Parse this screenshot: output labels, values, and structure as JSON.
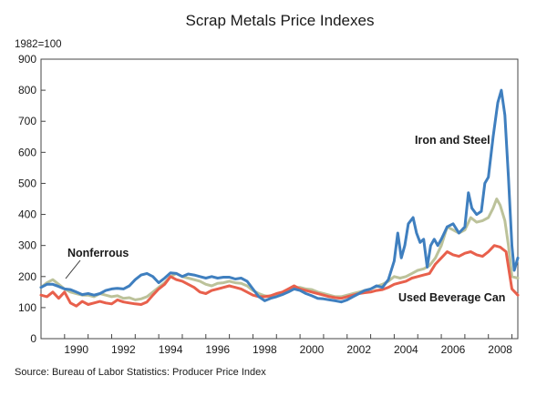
{
  "chart_data": {
    "type": "line",
    "title": "Scrap Metals Price Indexes",
    "unit_label": "1982=100",
    "source": "Source: Bureau of Labor Statistics: Producer Price Index",
    "xlim": [
      1989.0,
      2009.25
    ],
    "ylim": [
      0,
      900
    ],
    "y_ticks": [
      0,
      100,
      200,
      300,
      400,
      500,
      600,
      700,
      800,
      900
    ],
    "x_ticks": [
      1990,
      1992,
      1994,
      1996,
      1998,
      2000,
      2002,
      2004,
      2006,
      2008
    ],
    "grid": false,
    "legend": "inline labels",
    "colors": {
      "iron_steel": "#3f7fbf",
      "nonferrous": "#bcc29a",
      "used_can": "#e8604c"
    },
    "series": [
      {
        "name": "Iron and Steel",
        "key": "iron_steel",
        "points": [
          [
            1989.0,
            165
          ],
          [
            1989.25,
            175
          ],
          [
            1989.5,
            175
          ],
          [
            1989.75,
            168
          ],
          [
            1990.0,
            160
          ],
          [
            1990.25,
            158
          ],
          [
            1990.5,
            150
          ],
          [
            1990.75,
            142
          ],
          [
            1991.0,
            145
          ],
          [
            1991.25,
            140
          ],
          [
            1991.5,
            145
          ],
          [
            1991.75,
            155
          ],
          [
            1992.0,
            160
          ],
          [
            1992.25,
            162
          ],
          [
            1992.5,
            160
          ],
          [
            1992.75,
            170
          ],
          [
            1993.0,
            190
          ],
          [
            1993.25,
            205
          ],
          [
            1993.5,
            210
          ],
          [
            1993.75,
            200
          ],
          [
            1994.0,
            180
          ],
          [
            1994.25,
            195
          ],
          [
            1994.5,
            212
          ],
          [
            1994.75,
            210
          ],
          [
            1995.0,
            200
          ],
          [
            1995.25,
            208
          ],
          [
            1995.5,
            205
          ],
          [
            1995.75,
            200
          ],
          [
            1996.0,
            195
          ],
          [
            1996.25,
            200
          ],
          [
            1996.5,
            195
          ],
          [
            1996.75,
            198
          ],
          [
            1997.0,
            198
          ],
          [
            1997.25,
            192
          ],
          [
            1997.5,
            195
          ],
          [
            1997.75,
            185
          ],
          [
            1998.0,
            160
          ],
          [
            1998.25,
            135
          ],
          [
            1998.5,
            122
          ],
          [
            1998.75,
            130
          ],
          [
            1999.0,
            135
          ],
          [
            1999.25,
            142
          ],
          [
            1999.5,
            150
          ],
          [
            1999.75,
            160
          ],
          [
            2000.0,
            155
          ],
          [
            2000.25,
            145
          ],
          [
            2000.5,
            138
          ],
          [
            2000.75,
            130
          ],
          [
            2001.0,
            128
          ],
          [
            2001.25,
            125
          ],
          [
            2001.5,
            122
          ],
          [
            2001.75,
            118
          ],
          [
            2002.0,
            125
          ],
          [
            2002.25,
            135
          ],
          [
            2002.5,
            145
          ],
          [
            2002.75,
            155
          ],
          [
            2003.0,
            160
          ],
          [
            2003.25,
            170
          ],
          [
            2003.5,
            165
          ],
          [
            2003.75,
            190
          ],
          [
            2004.0,
            250
          ],
          [
            2004.15,
            340
          ],
          [
            2004.3,
            260
          ],
          [
            2004.45,
            300
          ],
          [
            2004.6,
            370
          ],
          [
            2004.8,
            390
          ],
          [
            2004.95,
            340
          ],
          [
            2005.1,
            310
          ],
          [
            2005.25,
            320
          ],
          [
            2005.4,
            230
          ],
          [
            2005.55,
            300
          ],
          [
            2005.7,
            320
          ],
          [
            2005.85,
            300
          ],
          [
            2006.0,
            320
          ],
          [
            2006.25,
            360
          ],
          [
            2006.5,
            370
          ],
          [
            2006.75,
            340
          ],
          [
            2007.0,
            360
          ],
          [
            2007.15,
            470
          ],
          [
            2007.3,
            420
          ],
          [
            2007.5,
            400
          ],
          [
            2007.7,
            410
          ],
          [
            2007.85,
            500
          ],
          [
            2008.0,
            520
          ],
          [
            2008.2,
            650
          ],
          [
            2008.4,
            760
          ],
          [
            2008.55,
            800
          ],
          [
            2008.7,
            720
          ],
          [
            2008.85,
            520
          ],
          [
            2009.0,
            300
          ],
          [
            2009.1,
            220
          ],
          [
            2009.25,
            260
          ]
        ]
      },
      {
        "name": "Nonferrous",
        "key": "nonferrous",
        "points": [
          [
            1989.0,
            165
          ],
          [
            1989.25,
            180
          ],
          [
            1989.5,
            190
          ],
          [
            1989.75,
            175
          ],
          [
            1990.0,
            160
          ],
          [
            1990.25,
            150
          ],
          [
            1990.5,
            145
          ],
          [
            1990.75,
            140
          ],
          [
            1991.0,
            140
          ],
          [
            1991.25,
            135
          ],
          [
            1991.5,
            145
          ],
          [
            1991.75,
            140
          ],
          [
            1992.0,
            135
          ],
          [
            1992.25,
            138
          ],
          [
            1992.5,
            130
          ],
          [
            1992.75,
            132
          ],
          [
            1993.0,
            125
          ],
          [
            1993.25,
            128
          ],
          [
            1993.5,
            135
          ],
          [
            1993.75,
            150
          ],
          [
            1994.0,
            165
          ],
          [
            1994.25,
            180
          ],
          [
            1994.5,
            200
          ],
          [
            1994.75,
            210
          ],
          [
            1995.0,
            200
          ],
          [
            1995.25,
            195
          ],
          [
            1995.5,
            190
          ],
          [
            1995.75,
            185
          ],
          [
            1996.0,
            175
          ],
          [
            1996.25,
            170
          ],
          [
            1996.5,
            178
          ],
          [
            1996.75,
            180
          ],
          [
            1997.0,
            185
          ],
          [
            1997.25,
            180
          ],
          [
            1997.5,
            178
          ],
          [
            1997.75,
            170
          ],
          [
            1998.0,
            155
          ],
          [
            1998.25,
            145
          ],
          [
            1998.5,
            138
          ],
          [
            1998.75,
            135
          ],
          [
            1999.0,
            140
          ],
          [
            1999.25,
            145
          ],
          [
            1999.5,
            155
          ],
          [
            1999.75,
            165
          ],
          [
            2000.0,
            165
          ],
          [
            2000.25,
            160
          ],
          [
            2000.5,
            158
          ],
          [
            2000.75,
            150
          ],
          [
            2001.0,
            145
          ],
          [
            2001.25,
            140
          ],
          [
            2001.5,
            135
          ],
          [
            2001.75,
            135
          ],
          [
            2002.0,
            140
          ],
          [
            2002.25,
            145
          ],
          [
            2002.5,
            150
          ],
          [
            2002.75,
            155
          ],
          [
            2003.0,
            160
          ],
          [
            2003.25,
            168
          ],
          [
            2003.5,
            175
          ],
          [
            2003.75,
            185
          ],
          [
            2004.0,
            200
          ],
          [
            2004.25,
            195
          ],
          [
            2004.5,
            200
          ],
          [
            2004.75,
            210
          ],
          [
            2005.0,
            220
          ],
          [
            2005.25,
            225
          ],
          [
            2005.5,
            235
          ],
          [
            2005.75,
            260
          ],
          [
            2006.0,
            300
          ],
          [
            2006.25,
            360
          ],
          [
            2006.5,
            350
          ],
          [
            2006.75,
            340
          ],
          [
            2007.0,
            350
          ],
          [
            2007.25,
            390
          ],
          [
            2007.5,
            375
          ],
          [
            2007.75,
            380
          ],
          [
            2008.0,
            390
          ],
          [
            2008.2,
            420
          ],
          [
            2008.35,
            450
          ],
          [
            2008.5,
            430
          ],
          [
            2008.7,
            380
          ],
          [
            2008.85,
            300
          ],
          [
            2009.0,
            200
          ],
          [
            2009.25,
            195
          ]
        ]
      },
      {
        "name": "Used Beverage Can",
        "key": "used_can",
        "points": [
          [
            1989.0,
            140
          ],
          [
            1989.25,
            135
          ],
          [
            1989.5,
            150
          ],
          [
            1989.75,
            130
          ],
          [
            1990.0,
            150
          ],
          [
            1990.25,
            115
          ],
          [
            1990.5,
            105
          ],
          [
            1990.75,
            120
          ],
          [
            1991.0,
            110
          ],
          [
            1991.25,
            115
          ],
          [
            1991.5,
            120
          ],
          [
            1991.75,
            115
          ],
          [
            1992.0,
            112
          ],
          [
            1992.25,
            125
          ],
          [
            1992.5,
            118
          ],
          [
            1992.75,
            115
          ],
          [
            1993.0,
            112
          ],
          [
            1993.25,
            110
          ],
          [
            1993.5,
            118
          ],
          [
            1993.75,
            140
          ],
          [
            1994.0,
            160
          ],
          [
            1994.25,
            175
          ],
          [
            1994.5,
            200
          ],
          [
            1994.75,
            190
          ],
          [
            1995.0,
            185
          ],
          [
            1995.25,
            175
          ],
          [
            1995.5,
            165
          ],
          [
            1995.75,
            150
          ],
          [
            1996.0,
            145
          ],
          [
            1996.25,
            155
          ],
          [
            1996.5,
            160
          ],
          [
            1996.75,
            165
          ],
          [
            1997.0,
            170
          ],
          [
            1997.25,
            165
          ],
          [
            1997.5,
            160
          ],
          [
            1997.75,
            150
          ],
          [
            1998.0,
            140
          ],
          [
            1998.25,
            135
          ],
          [
            1998.5,
            135
          ],
          [
            1998.75,
            138
          ],
          [
            1999.0,
            145
          ],
          [
            1999.25,
            150
          ],
          [
            1999.5,
            160
          ],
          [
            1999.75,
            170
          ],
          [
            2000.0,
            160
          ],
          [
            2000.25,
            155
          ],
          [
            2000.5,
            150
          ],
          [
            2000.75,
            145
          ],
          [
            2001.0,
            140
          ],
          [
            2001.25,
            135
          ],
          [
            2001.5,
            132
          ],
          [
            2001.75,
            130
          ],
          [
            2002.0,
            135
          ],
          [
            2002.25,
            140
          ],
          [
            2002.5,
            145
          ],
          [
            2002.75,
            148
          ],
          [
            2003.0,
            150
          ],
          [
            2003.25,
            155
          ],
          [
            2003.5,
            158
          ],
          [
            2003.75,
            165
          ],
          [
            2004.0,
            175
          ],
          [
            2004.25,
            180
          ],
          [
            2004.5,
            185
          ],
          [
            2004.75,
            195
          ],
          [
            2005.0,
            200
          ],
          [
            2005.25,
            205
          ],
          [
            2005.5,
            210
          ],
          [
            2005.75,
            240
          ],
          [
            2006.0,
            260
          ],
          [
            2006.25,
            280
          ],
          [
            2006.5,
            270
          ],
          [
            2006.75,
            265
          ],
          [
            2007.0,
            275
          ],
          [
            2007.25,
            280
          ],
          [
            2007.5,
            270
          ],
          [
            2007.75,
            265
          ],
          [
            2008.0,
            280
          ],
          [
            2008.25,
            300
          ],
          [
            2008.5,
            295
          ],
          [
            2008.75,
            280
          ],
          [
            2009.0,
            160
          ],
          [
            2009.25,
            140
          ]
        ]
      }
    ]
  }
}
